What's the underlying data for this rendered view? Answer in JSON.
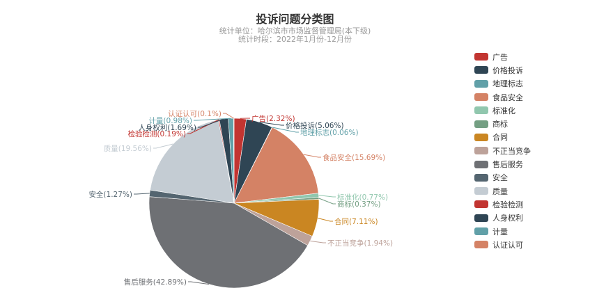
{
  "chart_data": {
    "type": "pie",
    "title": "投诉问题分类图",
    "subtitle_lines": [
      "统计单位：哈尔滨市市场监督管理局(本下级)",
      "统计时段：2022年1月份-12月份"
    ],
    "legend_position": "right",
    "slices": [
      {
        "name": "广告",
        "value": 2.32,
        "label": "广告(2.32%)",
        "color": "#c23531"
      },
      {
        "name": "价格投诉",
        "value": 5.06,
        "label": "价格投诉(5.06%)",
        "color": "#2f4554"
      },
      {
        "name": "地理标志",
        "value": 0.06,
        "label": "地理标志(0.06%)",
        "color": "#61a0a8"
      },
      {
        "name": "食品安全",
        "value": 15.69,
        "label": "食品安全(15.69%)",
        "color": "#d48265"
      },
      {
        "name": "标准化",
        "value": 0.77,
        "label": "标准化(0.77%)",
        "color": "#91c7ae"
      },
      {
        "name": "商标",
        "value": 0.37,
        "label": "商标(0.37%)",
        "color": "#749f83"
      },
      {
        "name": "合同",
        "value": 7.11,
        "label": "合同(7.11%)",
        "color": "#ca8622"
      },
      {
        "name": "不正当竞争",
        "value": 1.94,
        "label": "不正当竞争(1.94%)",
        "color": "#bda29a"
      },
      {
        "name": "售后服务",
        "value": 42.89,
        "label": "售后服务(42.89%)",
        "color": "#6e7074"
      },
      {
        "name": "安全",
        "value": 1.27,
        "label": "安全(1.27%)",
        "color": "#546570"
      },
      {
        "name": "质量",
        "value": 19.56,
        "label": "质量(19.56%)",
        "color": "#c4ccd3"
      },
      {
        "name": "检验检测",
        "value": 0.19,
        "label": "检验检测(0.19%)",
        "color": "#c23531"
      },
      {
        "name": "人身权利",
        "value": 1.69,
        "label": "人身权利(1.69%)",
        "color": "#2f4554"
      },
      {
        "name": "计量",
        "value": 0.98,
        "label": "计量(0.98%)",
        "color": "#61a0a8"
      },
      {
        "name": "认证认可",
        "value": 0.1,
        "label": "认证认可(0.1%)",
        "color": "#d48265"
      }
    ]
  }
}
